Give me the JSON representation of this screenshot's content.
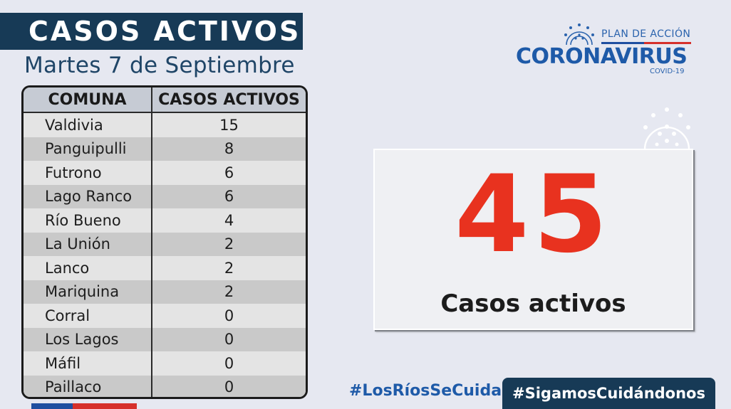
{
  "header": {
    "title": "CASOS ACTIVOS",
    "date": "Martes 7 de Septiembre"
  },
  "logo": {
    "plan_label": "PLAN DE ACCIÓN",
    "main_label": "CORONAVIRUS",
    "sub_label": "COVID-19"
  },
  "table": {
    "headers": [
      "COMUNA",
      "CASOS ACTIVOS"
    ],
    "rows": [
      {
        "comuna": "Valdivia",
        "casos": "15"
      },
      {
        "comuna": "Panguipulli",
        "casos": "8"
      },
      {
        "comuna": "Futrono",
        "casos": "6"
      },
      {
        "comuna": "Lago Ranco",
        "casos": "6"
      },
      {
        "comuna": "Río Bueno",
        "casos": "4"
      },
      {
        "comuna": "La Unión",
        "casos": "2"
      },
      {
        "comuna": "Lanco",
        "casos": "2"
      },
      {
        "comuna": "Mariquina",
        "casos": "2"
      },
      {
        "comuna": "Corral",
        "casos": "0"
      },
      {
        "comuna": "Los Lagos",
        "casos": "0"
      },
      {
        "comuna": "Máfil",
        "casos": "0"
      },
      {
        "comuna": "Paillaco",
        "casos": "0"
      }
    ]
  },
  "summary": {
    "total": "45",
    "label": "Casos activos"
  },
  "footer": {
    "hashtag_primary": "#LosRíosSeCuida",
    "hashtag_secondary": "#SigamosCuidándonos"
  },
  "colors": {
    "background": "#e6e8f1",
    "navy": "#173a56",
    "accent_blue": "#1e5aa8",
    "accent_red": "#e8321f"
  },
  "icons": {
    "logo": "virus-icon",
    "decoration": "virus-icon"
  }
}
